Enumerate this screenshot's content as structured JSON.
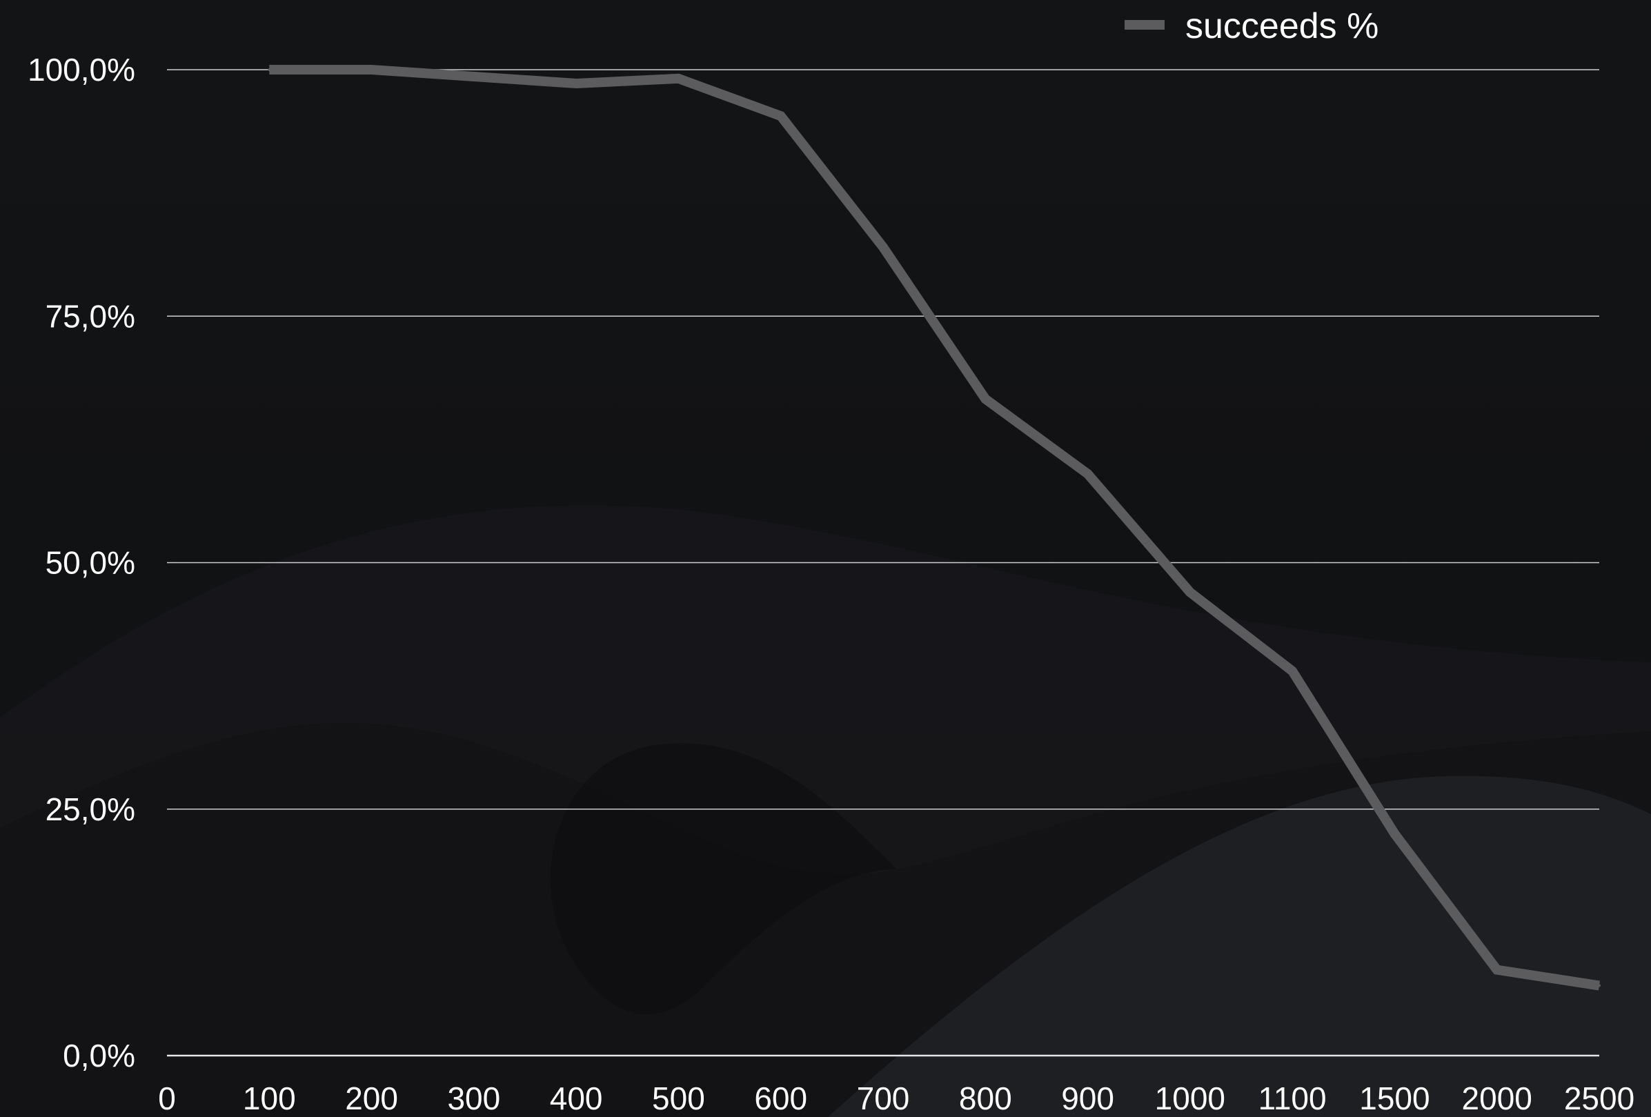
{
  "colors": {
    "background": "#111214",
    "gridline": "#cfcfd1",
    "series_line": "#5c5c5e",
    "text": "#ffffff"
  },
  "chart_data": {
    "type": "line",
    "title": "",
    "xlabel": "",
    "ylabel": "",
    "x_scale": "categorical",
    "categories": [
      "0",
      "100",
      "200",
      "300",
      "400",
      "500",
      "600",
      "700",
      "800",
      "900",
      "1000",
      "1100",
      "1500",
      "2000",
      "2500"
    ],
    "ylim": [
      0,
      100
    ],
    "y_ticks": [
      {
        "value": 0,
        "label": "0,0%"
      },
      {
        "value": 25,
        "label": "25,0%"
      },
      {
        "value": 50,
        "label": "50,0%"
      },
      {
        "value": 75,
        "label": "75,0%"
      },
      {
        "value": 100,
        "label": "100,0%"
      }
    ],
    "grid": true,
    "legend_position": "top-right",
    "series": [
      {
        "name": "succeeds %",
        "color": "#5c5c5e",
        "points": [
          {
            "x": "100",
            "y": 100.0
          },
          {
            "x": "200",
            "y": 100.0
          },
          {
            "x": "300",
            "y": 99.3
          },
          {
            "x": "400",
            "y": 98.6
          },
          {
            "x": "500",
            "y": 99.1
          },
          {
            "x": "600",
            "y": 95.3
          },
          {
            "x": "700",
            "y": 82.0
          },
          {
            "x": "800",
            "y": 66.6
          },
          {
            "x": "900",
            "y": 59.0
          },
          {
            "x": "1000",
            "y": 47.0
          },
          {
            "x": "1100",
            "y": 39.0
          },
          {
            "x": "1500",
            "y": 22.5
          },
          {
            "x": "2000",
            "y": 8.7
          },
          {
            "x": "2500",
            "y": 7.1
          }
        ]
      }
    ]
  }
}
